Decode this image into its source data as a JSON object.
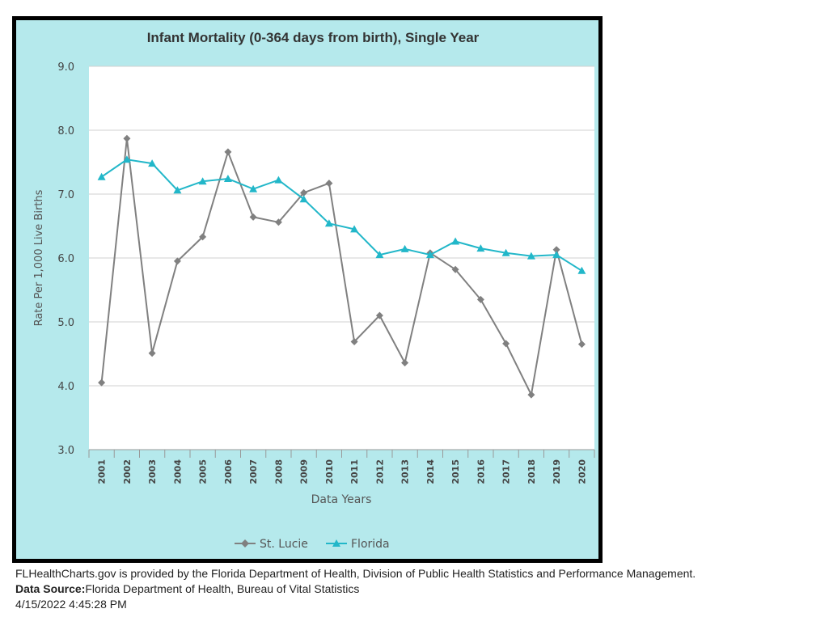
{
  "colors": {
    "chart_background": "#b5e9ec",
    "plot_background": "#ffffff",
    "frame_border": "#000000",
    "st_lucie": "#808080",
    "florida": "#22b7c9",
    "gridline": "#d0d0d0"
  },
  "chart_data": {
    "type": "line",
    "title": "Infant Mortality (0-364 days from birth), Single Year",
    "xlabel": "Data Years",
    "ylabel": "Rate Per 1,000 Live Births",
    "ylim": [
      3.0,
      9.0
    ],
    "yticks": [
      "3.0",
      "4.0",
      "5.0",
      "6.0",
      "7.0",
      "8.0",
      "9.0"
    ],
    "grid": true,
    "legend_position": "bottom",
    "categories": [
      "2001",
      "2002",
      "2003",
      "2004",
      "2005",
      "2006",
      "2007",
      "2008",
      "2009",
      "2010",
      "2011",
      "2012",
      "2013",
      "2014",
      "2015",
      "2016",
      "2017",
      "2018",
      "2019",
      "2020"
    ],
    "series": [
      {
        "name": "St. Lucie",
        "marker": "diamond",
        "color": "#808080",
        "values": [
          4.05,
          7.87,
          4.51,
          5.95,
          6.33,
          7.66,
          6.64,
          6.56,
          7.02,
          7.17,
          4.69,
          5.1,
          4.36,
          6.08,
          5.82,
          5.35,
          4.66,
          3.86,
          6.13,
          4.65
        ]
      },
      {
        "name": "Florida",
        "marker": "triangle",
        "color": "#22b7c9",
        "values": [
          7.27,
          7.54,
          7.48,
          7.06,
          7.2,
          7.24,
          7.08,
          7.22,
          6.92,
          6.54,
          6.45,
          6.05,
          6.14,
          6.05,
          6.26,
          6.15,
          6.08,
          6.03,
          6.05,
          5.8
        ]
      }
    ]
  },
  "footer": {
    "provider_line": "FLHealthCharts.gov is provided by the Florida Department of Health, Division of Public Health Statistics and Performance Management.",
    "source_label": "Data Source:",
    "source_value": "Florida Department of Health, Bureau of Vital Statistics",
    "timestamp": "4/15/2022 4:45:28 PM"
  }
}
